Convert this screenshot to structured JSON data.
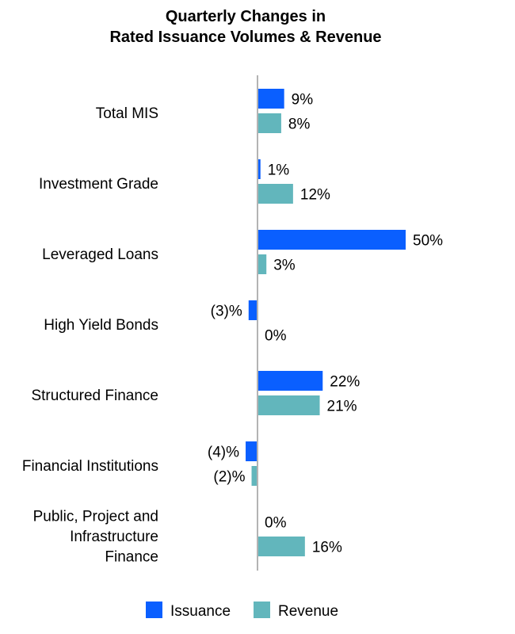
{
  "chart_data": {
    "type": "bar",
    "orientation": "horizontal",
    "title": [
      "Quarterly Changes in",
      "Rated Issuance Volumes & Revenue"
    ],
    "categories": [
      [
        "Total MIS"
      ],
      [
        "Investment Grade"
      ],
      [
        "Leveraged Loans"
      ],
      [
        "High Yield Bonds"
      ],
      [
        "Structured Finance"
      ],
      [
        "Financial Institutions"
      ],
      [
        "Public, Project and",
        "Infrastructure",
        "Finance"
      ]
    ],
    "series": [
      {
        "name": "Issuance",
        "color": "#0a5fff",
        "values": [
          9,
          1,
          50,
          -3,
          22,
          -4,
          0
        ],
        "labels": [
          "9%",
          "1%",
          "50%",
          "(3)%",
          "22%",
          "(4)%",
          "0%"
        ]
      },
      {
        "name": "Revenue",
        "color": "#62b6bc",
        "values": [
          8,
          12,
          3,
          0,
          21,
          -2,
          16
        ],
        "labels": [
          "8%",
          "12%",
          "3%",
          "0%",
          "21%",
          "(2)%",
          "16%"
        ]
      }
    ],
    "units": "%",
    "grid": false,
    "legend_placement": "bottom",
    "axis_color": "#b3b3b3"
  }
}
